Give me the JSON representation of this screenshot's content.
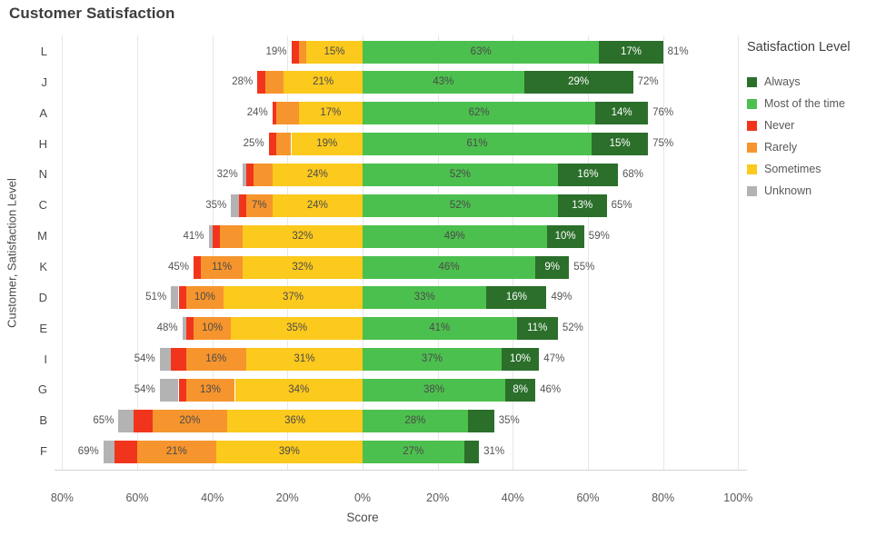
{
  "title": "Customer Satisfaction",
  "colors": {
    "always": "#2b6f2b",
    "most": "#4cc04e",
    "never": "#f1351c",
    "rarely": "#f6952e",
    "sometimes": "#fcc91d",
    "unknown": "#b3b3b3",
    "gridline": "#e7e7e7",
    "title_text": "#3d3d3d",
    "axis_text": "#595959"
  },
  "legend": {
    "title": "Satisfaction Level",
    "items": [
      {
        "key": "always",
        "label": "Always"
      },
      {
        "key": "most",
        "label": "Most of the time"
      },
      {
        "key": "never",
        "label": "Never"
      },
      {
        "key": "rarely",
        "label": "Rarely"
      },
      {
        "key": "sometimes",
        "label": "Sometimes"
      },
      {
        "key": "unknown",
        "label": "Unknown"
      }
    ]
  },
  "chart_data": {
    "type": "bar",
    "variant": "diverging-stacked-horizontal",
    "title": "Customer Satisfaction",
    "xlabel": "Score",
    "ylabel": "Customer, Satisfaction Level",
    "xlim": [
      -80,
      100
    ],
    "grid": true,
    "legend_position": "right",
    "x_tick_labels": [
      "80%",
      "60%",
      "40%",
      "20%",
      "0%",
      "20%",
      "40%",
      "60%",
      "80%",
      "100%"
    ],
    "x_tick_values": [
      -80,
      -60,
      -40,
      -20,
      0,
      20,
      40,
      60,
      80,
      100
    ],
    "left_stack_order_from_zero": [
      "sometimes",
      "rarely",
      "never",
      "unknown"
    ],
    "right_stack_order_from_zero": [
      "most",
      "always"
    ],
    "series_names": {
      "always": "Always",
      "most": "Most of the time",
      "never": "Never",
      "rarely": "Rarely",
      "sometimes": "Sometimes",
      "unknown": "Unknown"
    },
    "categories": [
      "L",
      "J",
      "A",
      "H",
      "N",
      "C",
      "M",
      "K",
      "D",
      "E",
      "I",
      "G",
      "B",
      "F"
    ],
    "rows": [
      {
        "category": "L",
        "left_total": "19%",
        "right_total": "81%",
        "values": {
          "unknown": 0,
          "never": 2,
          "rarely": 2,
          "sometimes": 15,
          "most": 63,
          "always": 17
        },
        "labels": {
          "sometimes": "15%",
          "most": "63%",
          "always": "17%"
        }
      },
      {
        "category": "J",
        "left_total": "28%",
        "right_total": "72%",
        "values": {
          "unknown": 0,
          "never": 2,
          "rarely": 5,
          "sometimes": 21,
          "most": 43,
          "always": 29
        },
        "labels": {
          "sometimes": "21%",
          "most": "43%",
          "always": "29%"
        }
      },
      {
        "category": "A",
        "left_total": "24%",
        "right_total": "76%",
        "values": {
          "unknown": 0,
          "never": 1,
          "rarely": 6,
          "sometimes": 17,
          "most": 62,
          "always": 14
        },
        "labels": {
          "sometimes": "17%",
          "most": "62%",
          "always": "14%"
        }
      },
      {
        "category": "H",
        "left_total": "25%",
        "right_total": "75%",
        "values": {
          "unknown": 0,
          "never": 2,
          "rarely": 4,
          "sometimes": 19,
          "most": 61,
          "always": 15
        },
        "labels": {
          "sometimes": "19%",
          "most": "61%",
          "always": "15%"
        }
      },
      {
        "category": "N",
        "left_total": "32%",
        "right_total": "68%",
        "values": {
          "unknown": 1,
          "never": 2,
          "rarely": 5,
          "sometimes": 24,
          "most": 52,
          "always": 16
        },
        "labels": {
          "sometimes": "24%",
          "most": "52%",
          "always": "16%"
        }
      },
      {
        "category": "C",
        "left_total": "35%",
        "right_total": "65%",
        "values": {
          "unknown": 2,
          "never": 2,
          "rarely": 7,
          "sometimes": 24,
          "most": 52,
          "always": 13
        },
        "labels": {
          "rarely": "7%",
          "sometimes": "24%",
          "most": "52%",
          "always": "13%"
        }
      },
      {
        "category": "M",
        "left_total": "41%",
        "right_total": "59%",
        "values": {
          "unknown": 1,
          "never": 2,
          "rarely": 6,
          "sometimes": 32,
          "most": 49,
          "always": 10
        },
        "labels": {
          "sometimes": "32%",
          "most": "49%",
          "always": "10%"
        }
      },
      {
        "category": "K",
        "left_total": "45%",
        "right_total": "55%",
        "values": {
          "unknown": 0,
          "never": 2,
          "rarely": 11,
          "sometimes": 32,
          "most": 46,
          "always": 9
        },
        "labels": {
          "rarely": "11%",
          "sometimes": "32%",
          "most": "46%",
          "always": "9%"
        }
      },
      {
        "category": "D",
        "left_total": "51%",
        "right_total": "49%",
        "values": {
          "unknown": 2,
          "never": 2,
          "rarely": 10,
          "sometimes": 37,
          "most": 33,
          "always": 16
        },
        "labels": {
          "rarely": "10%",
          "sometimes": "37%",
          "most": "33%",
          "always": "16%"
        }
      },
      {
        "category": "E",
        "left_total": "48%",
        "right_total": "52%",
        "values": {
          "unknown": 1,
          "never": 2,
          "rarely": 10,
          "sometimes": 35,
          "most": 41,
          "always": 11
        },
        "labels": {
          "rarely": "10%",
          "sometimes": "35%",
          "most": "41%",
          "always": "11%"
        }
      },
      {
        "category": "I",
        "left_total": "54%",
        "right_total": "47%",
        "values": {
          "unknown": 3,
          "never": 4,
          "rarely": 16,
          "sometimes": 31,
          "most": 37,
          "always": 10
        },
        "labels": {
          "rarely": "16%",
          "sometimes": "31%",
          "most": "37%",
          "always": "10%"
        }
      },
      {
        "category": "G",
        "left_total": "54%",
        "right_total": "46%",
        "values": {
          "unknown": 5,
          "never": 2,
          "rarely": 13,
          "sometimes": 34,
          "most": 38,
          "always": 8
        },
        "labels": {
          "rarely": "13%",
          "sometimes": "34%",
          "most": "38%",
          "always": "8%"
        }
      },
      {
        "category": "B",
        "left_total": "65%",
        "right_total": "35%",
        "values": {
          "unknown": 4,
          "never": 5,
          "rarely": 20,
          "sometimes": 36,
          "most": 28,
          "always": 7
        },
        "labels": {
          "rarely": "20%",
          "sometimes": "36%",
          "most": "28%"
        }
      },
      {
        "category": "F",
        "left_total": "69%",
        "right_total": "31%",
        "values": {
          "unknown": 3,
          "never": 6,
          "rarely": 21,
          "sometimes": 39,
          "most": 27,
          "always": 4
        },
        "labels": {
          "rarely": "21%",
          "sometimes": "39%",
          "most": "27%"
        }
      }
    ]
  }
}
